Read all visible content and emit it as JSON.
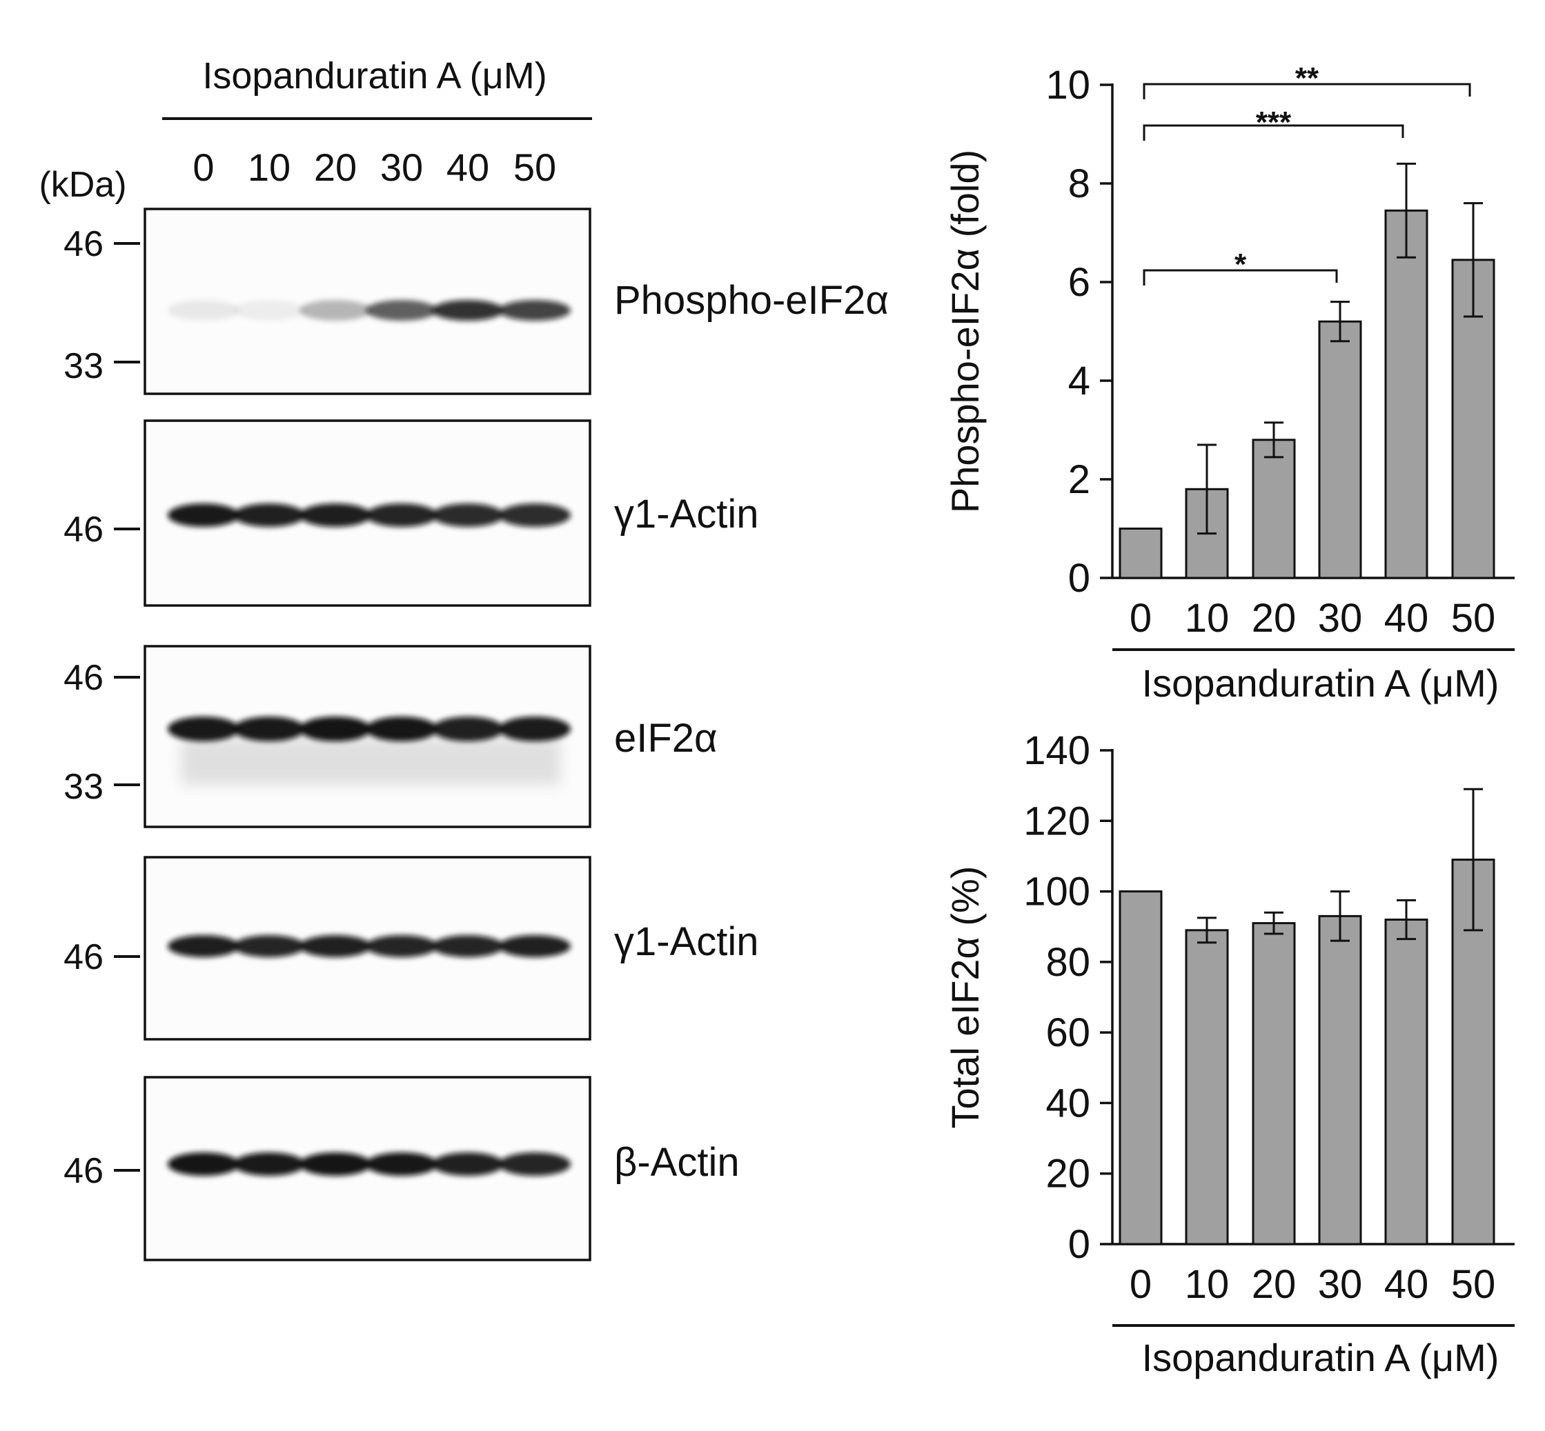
{
  "blot_panel": {
    "header_label": "Isopanduratin A (μM)",
    "lane_labels": [
      "0",
      "10",
      "20",
      "30",
      "40",
      "50"
    ],
    "mw_unit_label": "(kDa)",
    "blots": [
      {
        "protein": "Phospho-eIF2α",
        "markers": [
          "46",
          "33"
        ],
        "band_intensity": [
          0.08,
          0.06,
          0.28,
          0.62,
          0.85,
          0.78
        ]
      },
      {
        "protein": "γ1-Actin",
        "markers": [
          "46"
        ],
        "band_intensity": [
          0.95,
          0.92,
          0.93,
          0.9,
          0.88,
          0.87
        ]
      },
      {
        "protein": "eIF2α",
        "markers": [
          "46",
          "33"
        ],
        "band_intensity": [
          0.95,
          0.95,
          0.97,
          0.96,
          0.92,
          0.94
        ]
      },
      {
        "protein": "γ1-Actin",
        "markers": [
          "46"
        ],
        "band_intensity": [
          0.93,
          0.9,
          0.92,
          0.9,
          0.9,
          0.92
        ]
      },
      {
        "protein": "β-Actin",
        "markers": [
          "46"
        ],
        "band_intensity": [
          0.97,
          0.95,
          0.97,
          0.96,
          0.92,
          0.9
        ]
      }
    ]
  },
  "chart_data": [
    {
      "type": "bar",
      "title": "",
      "categories": [
        "0",
        "10",
        "20",
        "30",
        "40",
        "50"
      ],
      "values": [
        1.0,
        1.8,
        2.8,
        5.2,
        7.45,
        6.45
      ],
      "errors": [
        0,
        0.9,
        0.35,
        0.4,
        0.95,
        1.15
      ],
      "xlabel": "Isopanduratin A (μM)",
      "ylabel": "Phospho-eIF2α (fold)",
      "ylim": [
        0,
        10
      ],
      "yticks": [
        "0",
        "2",
        "4",
        "6",
        "8",
        "10"
      ],
      "significance": [
        {
          "from": "0",
          "to": "30",
          "label": "*"
        },
        {
          "from": "0",
          "to": "40",
          "label": "***"
        },
        {
          "from": "0",
          "to": "50",
          "label": "**"
        }
      ],
      "bar_color": "#a0a0a0"
    },
    {
      "type": "bar",
      "title": "",
      "categories": [
        "0",
        "10",
        "20",
        "30",
        "40",
        "50"
      ],
      "values": [
        100,
        89,
        91,
        93,
        92,
        109
      ],
      "errors": [
        0,
        3.5,
        3,
        7,
        5.5,
        20
      ],
      "xlabel": "Isopanduratin A (μM)",
      "ylabel": "Total eIF2α (%)",
      "ylim": [
        0,
        140
      ],
      "yticks": [
        "0",
        "20",
        "40",
        "60",
        "80",
        "100",
        "120",
        "140"
      ],
      "significance": [],
      "bar_color": "#a0a0a0"
    }
  ]
}
